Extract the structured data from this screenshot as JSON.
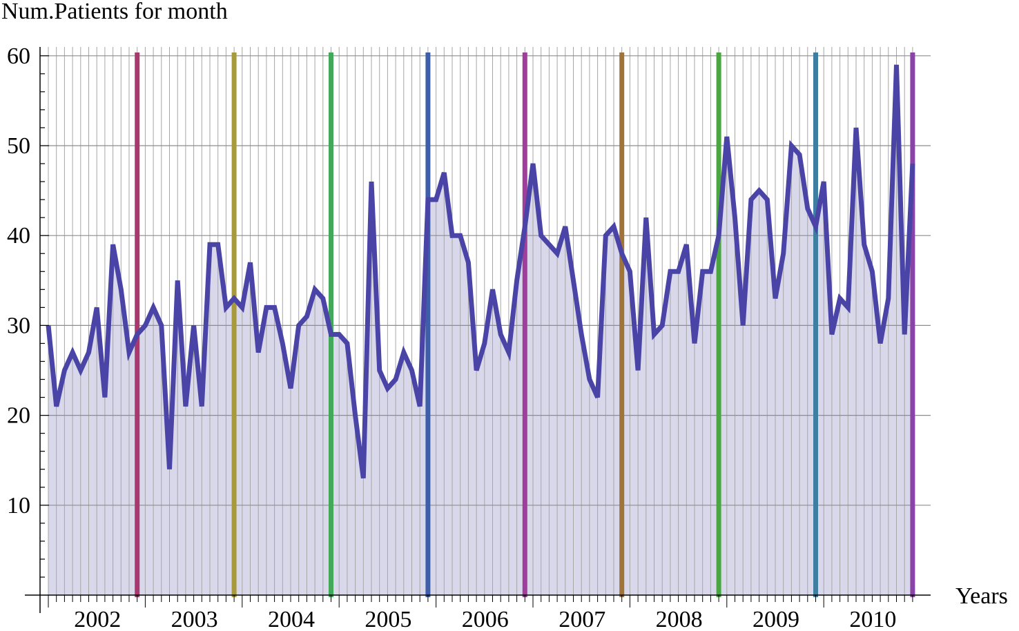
{
  "chart_data": {
    "type": "area",
    "ylabel": "Num.Patients for month",
    "xlabel": "Years",
    "ylim": [
      0,
      60
    ],
    "yticks": [
      10,
      20,
      30,
      40,
      50,
      60
    ],
    "x_tick_labels": [
      "2002",
      "2003",
      "2004",
      "2005",
      "2006",
      "2007",
      "2008",
      "2009",
      "2010"
    ],
    "x_start": "2002-01",
    "grid": true,
    "series": [
      {
        "color": "#4a44a6",
        "fill_color": "#d8d8ea",
        "values": [
          30,
          21,
          25,
          27,
          25,
          27,
          32,
          22,
          39,
          34,
          27,
          29,
          30,
          32,
          30,
          14,
          35,
          21,
          30,
          21,
          39,
          39,
          32,
          33,
          32,
          37,
          27,
          32,
          32,
          28,
          23,
          30,
          31,
          34,
          33,
          29,
          29,
          28,
          20,
          13,
          46,
          25,
          23,
          24,
          27,
          25,
          21,
          44,
          44,
          47,
          40,
          40,
          37,
          25,
          28,
          34,
          29,
          27,
          35,
          41,
          48,
          40,
          39,
          38,
          41,
          35,
          29,
          24,
          22,
          40,
          41,
          38,
          36,
          25,
          42,
          29,
          30,
          36,
          36,
          39,
          28,
          36,
          36,
          40,
          51,
          42,
          30,
          44,
          45,
          44,
          33,
          38,
          50,
          49,
          43,
          41,
          46,
          29,
          33,
          32,
          52,
          39,
          36,
          28,
          33,
          59,
          29,
          48
        ]
      }
    ],
    "year_markers": [
      {
        "year_end": "2002",
        "color": "#a8386d"
      },
      {
        "year_end": "2003",
        "color": "#a69a3c"
      },
      {
        "year_end": "2004",
        "color": "#44a85a"
      },
      {
        "year_end": "2005",
        "color": "#3e5ea8"
      },
      {
        "year_end": "2006",
        "color": "#a03e9c"
      },
      {
        "year_end": "2007",
        "color": "#a07438"
      },
      {
        "year_end": "2008",
        "color": "#4aa640"
      },
      {
        "year_end": "2009",
        "color": "#3e7ea0"
      },
      {
        "year_end": "2010",
        "color": "#8a44a8"
      }
    ]
  }
}
